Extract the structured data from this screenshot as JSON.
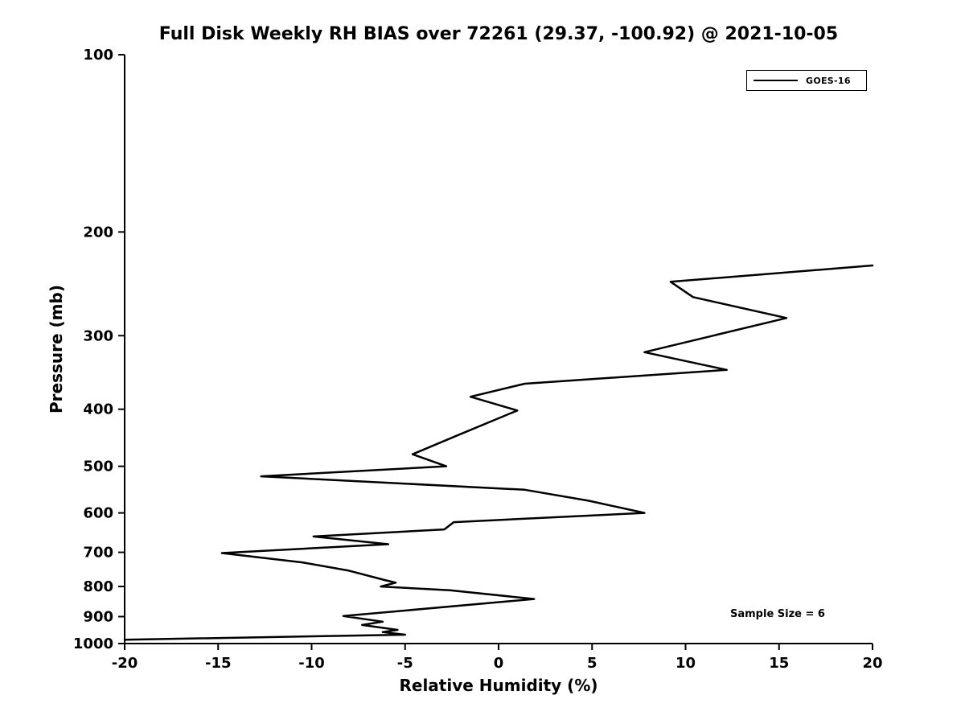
{
  "chart_data": {
    "type": "line",
    "title": "Full Disk Weekly RH BIAS over 72261 (29.37, -100.92) @ 2021-10-05",
    "xlabel": "Relative Humidity (%)",
    "ylabel": "Pressure (mb)",
    "xlim": [
      -20,
      20
    ],
    "ylim": [
      100,
      1000
    ],
    "yscale": "log",
    "y_inverted": true,
    "grid": false,
    "xticks": [
      -20,
      -15,
      -10,
      -5,
      0,
      5,
      10,
      15,
      20
    ],
    "yticks": [
      100,
      200,
      300,
      400,
      500,
      600,
      700,
      800,
      900,
      1000
    ],
    "legend": {
      "position": "top-right",
      "entries": [
        {
          "label": "GOES-16",
          "color": "#000000",
          "line_style": "solid"
        }
      ]
    },
    "annotation": "Sample Size = 6",
    "series": [
      {
        "name": "GOES-16",
        "color": "#000000",
        "points_rh_pressure": [
          [
            20.0,
            228
          ],
          [
            9.2,
            243
          ],
          [
            10.4,
            258
          ],
          [
            15.4,
            280
          ],
          [
            7.8,
            320
          ],
          [
            12.2,
            343
          ],
          [
            1.4,
            362
          ],
          [
            -1.5,
            381
          ],
          [
            1.0,
            402
          ],
          [
            -2.2,
            443
          ],
          [
            -4.6,
            477
          ],
          [
            -2.8,
            500
          ],
          [
            -12.7,
            520
          ],
          [
            1.4,
            548
          ],
          [
            4.8,
            572
          ],
          [
            7.8,
            600
          ],
          [
            -2.4,
            622
          ],
          [
            -2.9,
            640
          ],
          [
            -9.9,
            658
          ],
          [
            -5.9,
            678
          ],
          [
            -14.8,
            702
          ],
          [
            -10.5,
            728
          ],
          [
            -8.0,
            752
          ],
          [
            -6.1,
            780
          ],
          [
            -5.5,
            788
          ],
          [
            -6.3,
            800
          ],
          [
            -2.6,
            812
          ],
          [
            1.9,
            840
          ],
          [
            -8.3,
            898
          ],
          [
            -6.2,
            918
          ],
          [
            -7.3,
            930
          ],
          [
            -5.4,
            948
          ],
          [
            -6.2,
            956
          ],
          [
            -5.0,
            966
          ],
          [
            -20.0,
            985
          ]
        ]
      }
    ]
  }
}
